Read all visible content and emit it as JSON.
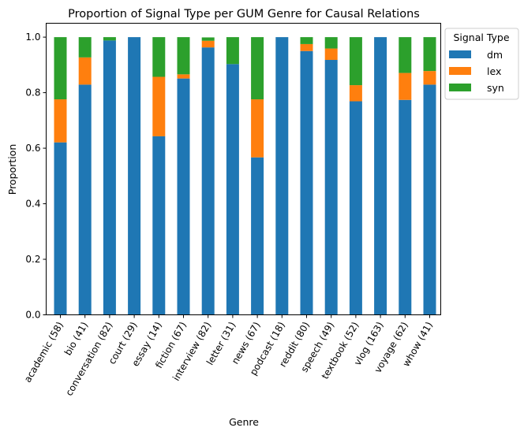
{
  "chart_data": {
    "type": "bar",
    "stacked": true,
    "title": "Proportion of Signal Type per GUM Genre for Causal Relations",
    "xlabel": "Genre",
    "ylabel": "Proportion",
    "ylim": [
      0,
      1.05
    ],
    "yticks": [
      "0.0",
      "0.2",
      "0.4",
      "0.6",
      "0.8",
      "1.0"
    ],
    "grid": false,
    "legend": {
      "title": "Signal Type",
      "placement": "outside-top-right"
    },
    "categories": [
      "academic (58)",
      "bio (41)",
      "conversation (82)",
      "court (29)",
      "essay (14)",
      "fiction (67)",
      "interview (82)",
      "letter (31)",
      "news (67)",
      "podcast (18)",
      "reddit (80)",
      "speech (49)",
      "textbook (52)",
      "vlog (163)",
      "voyage (62)",
      "whow (41)"
    ],
    "series": [
      {
        "name": "dm",
        "color": "#1f77b4",
        "values": [
          0.621,
          0.829,
          0.988,
          1.0,
          0.643,
          0.851,
          0.963,
          0.903,
          0.567,
          1.0,
          0.95,
          0.918,
          0.769,
          1.0,
          0.774,
          0.829
        ]
      },
      {
        "name": "lex",
        "color": "#ff7f0e",
        "values": [
          0.155,
          0.098,
          0.0,
          0.0,
          0.214,
          0.015,
          0.024,
          0.0,
          0.209,
          0.0,
          0.025,
          0.041,
          0.058,
          0.0,
          0.097,
          0.049
        ]
      },
      {
        "name": "syn",
        "color": "#2ca02c",
        "values": [
          0.224,
          0.073,
          0.012,
          0.0,
          0.143,
          0.134,
          0.012,
          0.097,
          0.224,
          0.0,
          0.025,
          0.041,
          0.173,
          0.0,
          0.129,
          0.122
        ]
      }
    ]
  }
}
